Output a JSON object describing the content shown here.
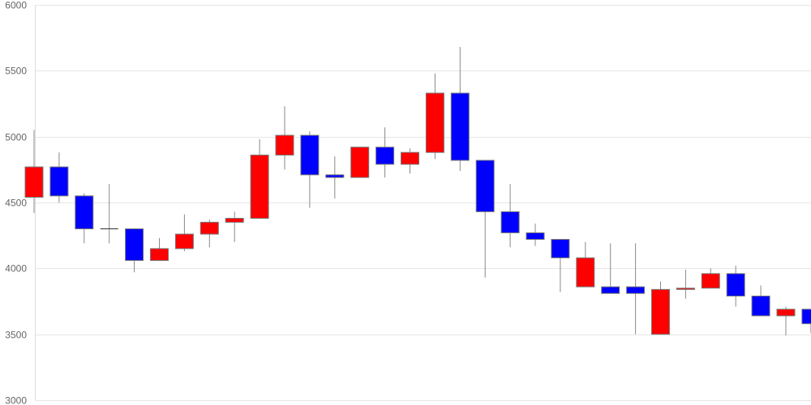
{
  "chart_data": {
    "type": "candlestick",
    "title": "",
    "xlabel": "",
    "ylabel": "",
    "ylim": [
      3000,
      6000
    ],
    "yticks": [
      "3000",
      "3500",
      "4000",
      "4500",
      "5000",
      "5500",
      "6000"
    ],
    "grid": true,
    "up_color": "#ff0000",
    "down_color": "#0000ff",
    "candles": [
      {
        "open": 4540,
        "close": 4770,
        "high": 5050,
        "low": 4420
      },
      {
        "open": 4770,
        "close": 4550,
        "high": 4880,
        "low": 4500
      },
      {
        "open": 4550,
        "close": 4300,
        "high": 4570,
        "low": 4190
      },
      {
        "open": 4300,
        "close": 4300,
        "high": 4640,
        "low": 4190
      },
      {
        "open": 4300,
        "close": 4060,
        "high": 4300,
        "low": 3970
      },
      {
        "open": 4060,
        "close": 4150,
        "high": 4230,
        "low": 4060
      },
      {
        "open": 4150,
        "close": 4260,
        "high": 4410,
        "low": 4130
      },
      {
        "open": 4260,
        "close": 4350,
        "high": 4370,
        "low": 4160
      },
      {
        "open": 4350,
        "close": 4380,
        "high": 4430,
        "low": 4200
      },
      {
        "open": 4380,
        "close": 4860,
        "high": 4980,
        "low": 4380
      },
      {
        "open": 4860,
        "close": 5010,
        "high": 5230,
        "low": 4750
      },
      {
        "open": 5010,
        "close": 4710,
        "high": 5040,
        "low": 4460
      },
      {
        "open": 4710,
        "close": 4690,
        "high": 4850,
        "low": 4530
      },
      {
        "open": 4690,
        "close": 4920,
        "high": 4920,
        "low": 4690
      },
      {
        "open": 4920,
        "close": 4790,
        "high": 5070,
        "low": 4690
      },
      {
        "open": 4790,
        "close": 4880,
        "high": 4910,
        "low": 4720
      },
      {
        "open": 4880,
        "close": 5330,
        "high": 5480,
        "low": 4830
      },
      {
        "open": 5330,
        "close": 4820,
        "high": 5680,
        "low": 4740
      },
      {
        "open": 4820,
        "close": 4430,
        "high": 4820,
        "low": 3930
      },
      {
        "open": 4430,
        "close": 4270,
        "high": 4640,
        "low": 4160
      },
      {
        "open": 4270,
        "close": 4220,
        "high": 4340,
        "low": 4170
      },
      {
        "open": 4220,
        "close": 4080,
        "high": 4220,
        "low": 3820
      },
      {
        "open": 3860,
        "close": 4080,
        "high": 4200,
        "low": 3860
      },
      {
        "open": 3860,
        "close": 3810,
        "high": 4190,
        "low": 3810
      },
      {
        "open": 3860,
        "close": 3810,
        "high": 4190,
        "low": 3500
      },
      {
        "open": 3500,
        "close": 3840,
        "high": 3900,
        "low": 3500
      },
      {
        "open": 3840,
        "close": 3850,
        "high": 3990,
        "low": 3770
      },
      {
        "open": 3850,
        "close": 3960,
        "high": 4000,
        "low": 3850
      },
      {
        "open": 3960,
        "close": 3790,
        "high": 4020,
        "low": 3710
      },
      {
        "open": 3790,
        "close": 3640,
        "high": 3870,
        "low": 3640
      },
      {
        "open": 3640,
        "close": 3690,
        "high": 3710,
        "low": 3490
      },
      {
        "open": 3690,
        "close": 3580,
        "high": 3690,
        "low": 3510
      }
    ]
  }
}
